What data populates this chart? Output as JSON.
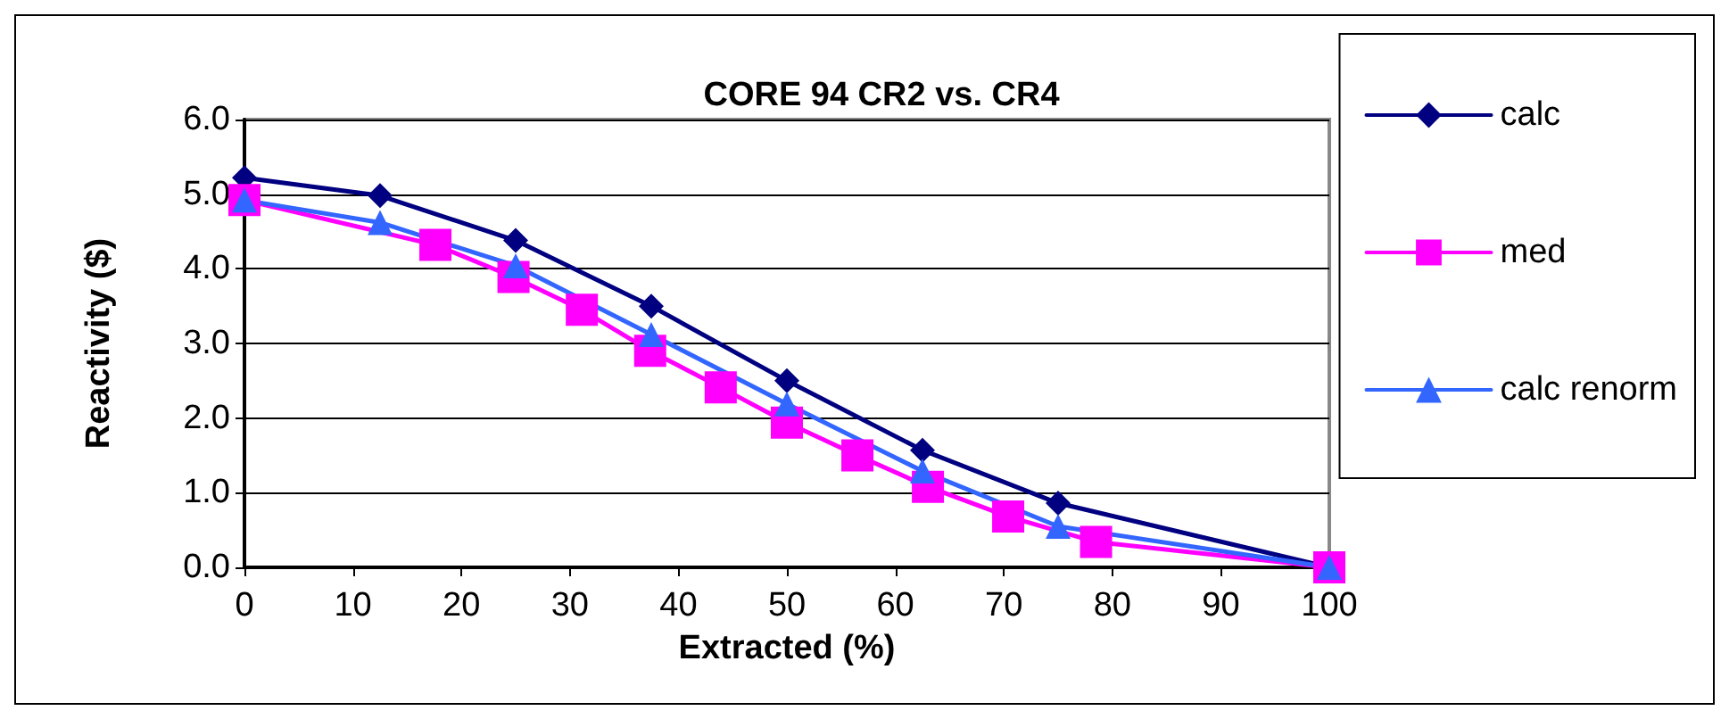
{
  "chart_data": {
    "type": "line",
    "title": "CORE 94 CR2 vs. CR4",
    "xlabel": "Extracted (%)",
    "ylabel": "Reactivity ($)",
    "xlim": [
      0,
      100
    ],
    "xticks": [
      0,
      10,
      20,
      30,
      40,
      50,
      60,
      70,
      80,
      90,
      100
    ],
    "ylim": [
      0,
      6
    ],
    "yticks": [
      {
        "value": 0,
        "label": "0.0"
      },
      {
        "value": 1,
        "label": "1.0"
      },
      {
        "value": 2,
        "label": "2.0"
      },
      {
        "value": 3,
        "label": "3.0"
      },
      {
        "value": 4,
        "label": "4.0"
      },
      {
        "value": 5,
        "label": "5.0"
      },
      {
        "value": 6,
        "label": "6.0"
      }
    ],
    "grid": "y",
    "legend": "right",
    "line_style": "solid",
    "series": [
      {
        "name": "calc",
        "color": "#000080",
        "marker": "diamond",
        "x": [
          0,
          12.5,
          25,
          37.5,
          50,
          62.5,
          75,
          100
        ],
        "values": [
          5.22,
          4.98,
          4.38,
          3.5,
          2.5,
          1.57,
          0.86,
          0
        ]
      },
      {
        "name": "med",
        "color": "#ff00ff",
        "marker": "square",
        "x": [
          0,
          17.6,
          24.8,
          31.1,
          37.4,
          43.9,
          50,
          56.5,
          63,
          70.4,
          78.5,
          100
        ],
        "values": [
          4.92,
          4.32,
          3.89,
          3.45,
          2.9,
          2.41,
          1.94,
          1.5,
          1.08,
          0.68,
          0.34,
          0
        ]
      },
      {
        "name": "calc renorm",
        "color": "#3366ff",
        "marker": "triangle",
        "x": [
          0,
          12.5,
          25,
          37.5,
          50,
          62.5,
          75,
          100
        ],
        "values": [
          4.92,
          4.62,
          4.04,
          3.12,
          2.19,
          1.29,
          0.55,
          0
        ]
      }
    ]
  }
}
